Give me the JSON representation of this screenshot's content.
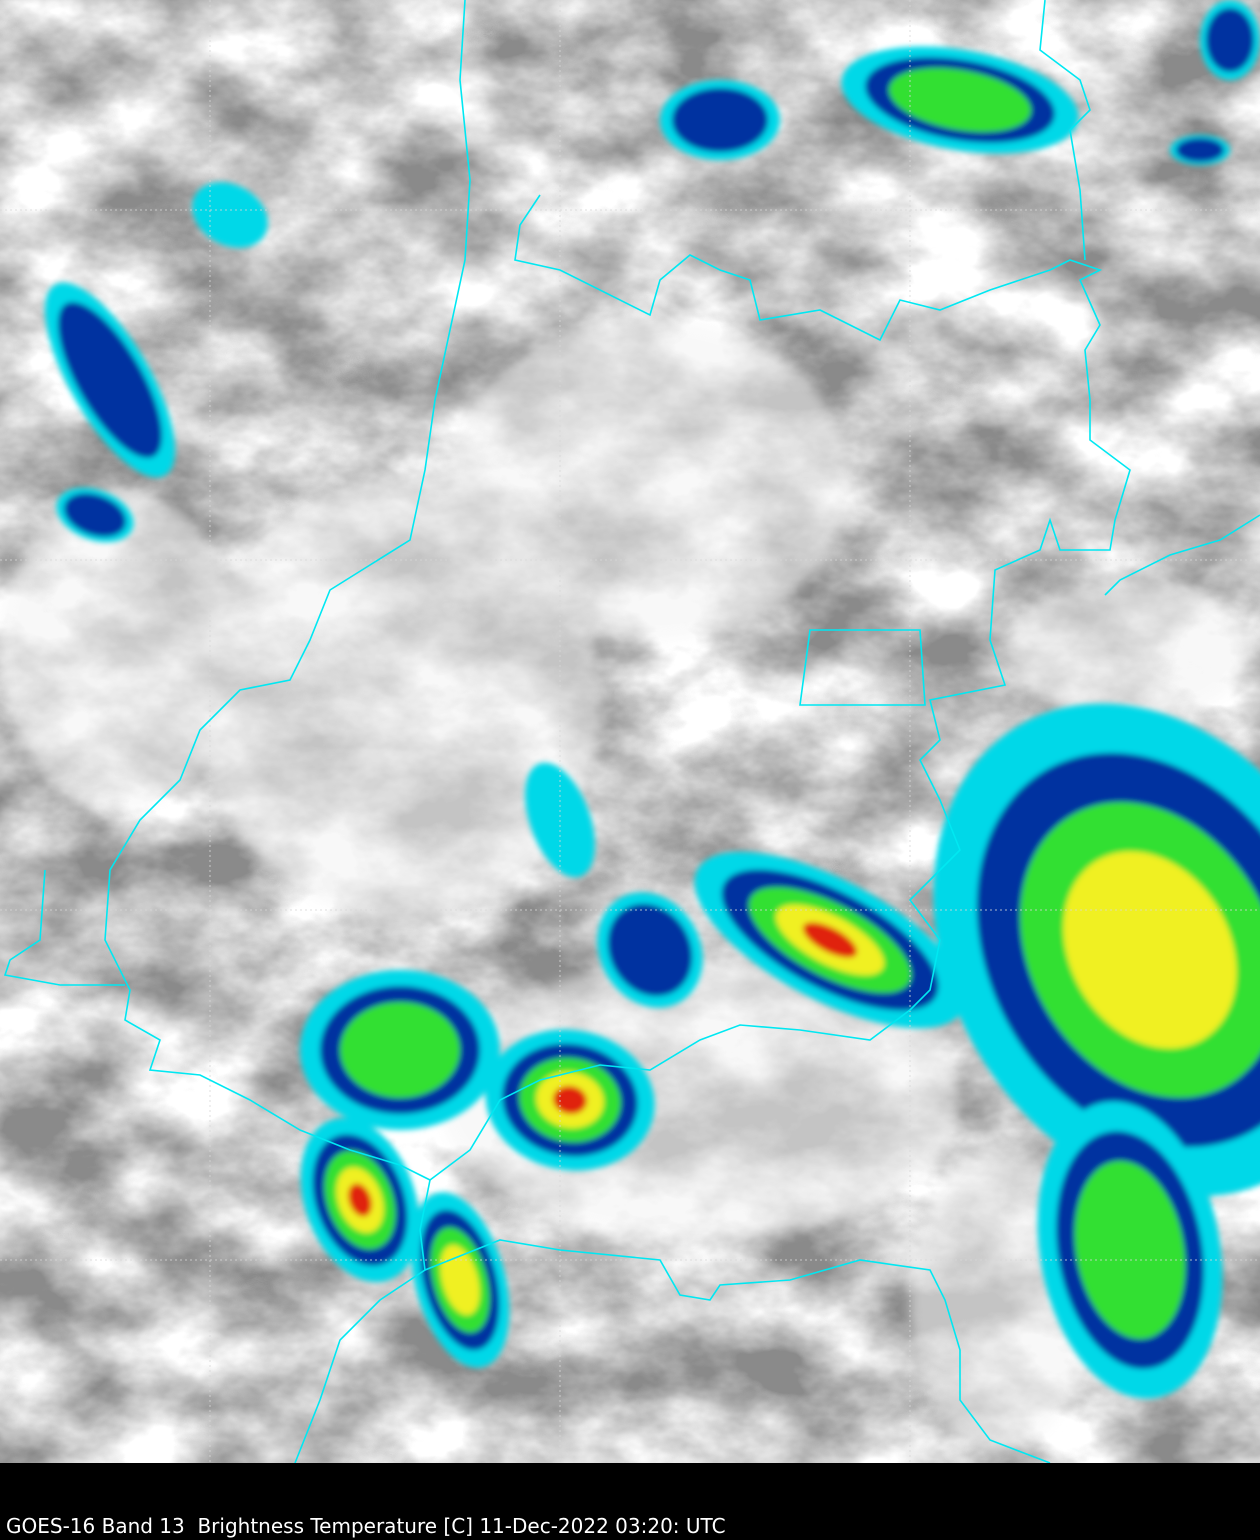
{
  "caption": "GOES-16 Band 13  Brightness Temperature [C] 11-Dec-2022 03:20: UTC",
  "colors": {
    "border": "#00e5f0",
    "grid": "#d0d0d0",
    "cold_cyan": "#00d8e8",
    "cold_blue": "#0030a0",
    "cold_green": "#30e030",
    "cold_yellow": "#f0f020",
    "cold_red": "#e02010",
    "background": "#000000"
  }
}
